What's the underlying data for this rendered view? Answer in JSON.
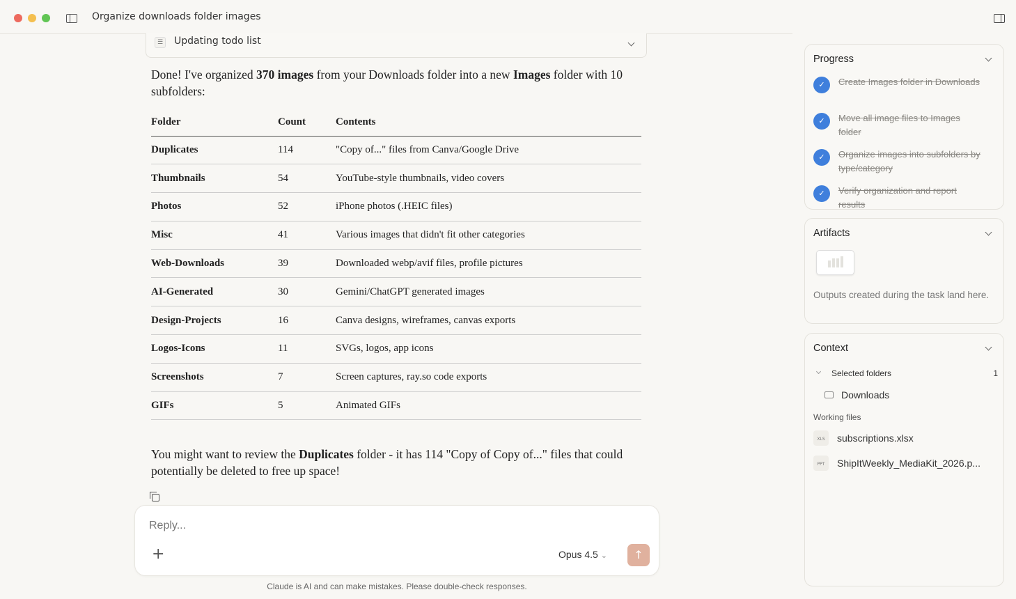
{
  "window": {
    "title": "Organize downloads folder images",
    "colors": {
      "close": "#ed6a5e",
      "minimize": "#f4bf4f",
      "maximize": "#61c554"
    }
  },
  "todo_bar": {
    "label": "Updating todo list",
    "icon": "checklist-icon"
  },
  "message": {
    "intro_parts": [
      "Done! I've organized ",
      "370 images",
      " from your Downloads folder into a new ",
      "Images",
      " folder with 10 subfolders:"
    ],
    "table": {
      "headers": [
        "Folder",
        "Count",
        "Contents"
      ],
      "rows": [
        [
          "Duplicates",
          "114",
          "\"Copy of...\" files from Canva/Google Drive"
        ],
        [
          "Thumbnails",
          "54",
          "YouTube-style thumbnails, video covers"
        ],
        [
          "Photos",
          "52",
          "iPhone photos (.HEIC files)"
        ],
        [
          "Misc",
          "41",
          "Various images that didn't fit other categories"
        ],
        [
          "Web-Downloads",
          "39",
          "Downloaded webp/avif files, profile pictures"
        ],
        [
          "AI-Generated",
          "30",
          "Gemini/ChatGPT generated images"
        ],
        [
          "Design-Projects",
          "16",
          "Canva designs, wireframes, canvas exports"
        ],
        [
          "Logos-Icons",
          "11",
          "SVGs, logos, app icons"
        ],
        [
          "Screenshots",
          "7",
          "Screen captures, ray.so code exports"
        ],
        [
          "GIFs",
          "5",
          "Animated GIFs"
        ]
      ]
    },
    "outro_parts": [
      "You might want to review the ",
      "Duplicates",
      " folder - it has 114 \"Copy of Copy of...\" files that could potentially be deleted to free up space!"
    ]
  },
  "composer": {
    "placeholder": "Reply...",
    "model": "Opus 4.5",
    "send_color": "#e0b19e"
  },
  "disclaimer": "Claude is AI and can make mistakes. Please double-check responses.",
  "progress": {
    "title": "Progress",
    "steps": [
      {
        "label": "Create Images folder in Downloads",
        "done": true
      },
      {
        "label": "Move all image files to Images folder",
        "done": true
      },
      {
        "label": "Organize images into subfolders by type/category",
        "done": true
      },
      {
        "label": "Verify organization and report results",
        "done": true
      }
    ]
  },
  "artifacts": {
    "title": "Artifacts",
    "empty_text": "Outputs created during the task land here."
  },
  "context": {
    "title": "Context",
    "selected_folders_label": "Selected folders",
    "selected_folders_count": "1",
    "folders": [
      "Downloads"
    ],
    "working_files_label": "Working files",
    "files": [
      {
        "name": "subscriptions.xlsx",
        "type": "XLS"
      },
      {
        "name": "ShipItWeekly_MediaKit_2026.p...",
        "type": "PPT"
      }
    ]
  }
}
